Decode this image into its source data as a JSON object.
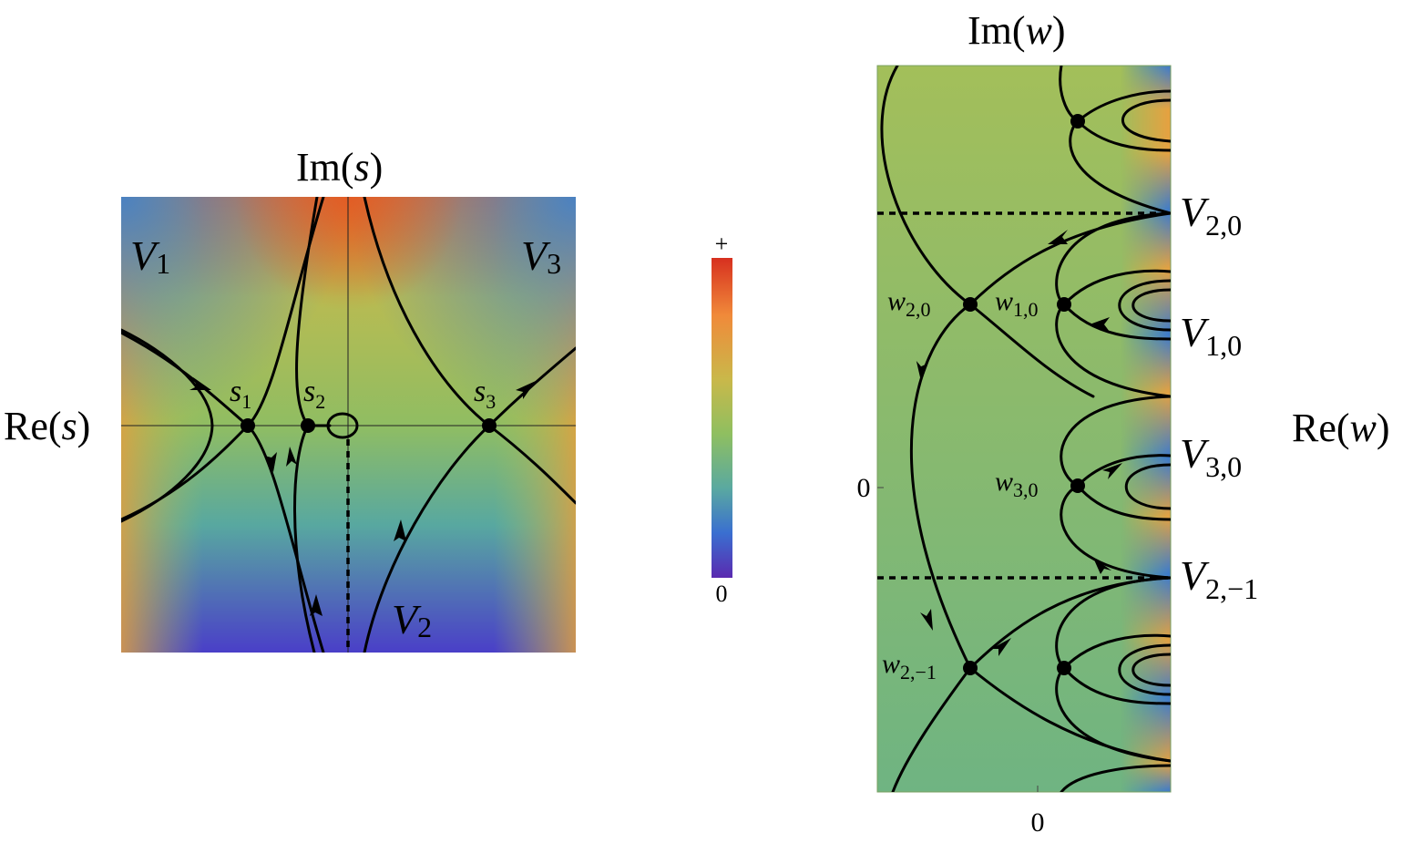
{
  "left_panel": {
    "x_axis_label_pre": "Re(",
    "x_axis_label_var": "s",
    "x_axis_label_post": ")",
    "y_axis_label_pre": "Im(",
    "y_axis_label_var": "s",
    "y_axis_label_post": ")",
    "valleys": [
      {
        "main": "V",
        "sub": "1"
      },
      {
        "main": "V",
        "sub": "2"
      },
      {
        "main": "V",
        "sub": "3"
      }
    ],
    "saddles": [
      {
        "main": "s",
        "sub": "1"
      },
      {
        "main": "s",
        "sub": "2"
      },
      {
        "main": "s",
        "sub": "3"
      }
    ]
  },
  "colorbar": {
    "top_label": "+",
    "bottom_label": "0",
    "colors": [
      "#d7301f",
      "#f08a3a",
      "#c9b84a",
      "#8fbf60",
      "#5aa9a0",
      "#3a6fd0",
      "#5a2ab0"
    ]
  },
  "right_panel": {
    "x_axis_label_pre": "Re(",
    "x_axis_label_var": "w",
    "x_axis_label_post": ")",
    "y_axis_label_pre": "Im(",
    "y_axis_label_var": "w",
    "y_axis_label_post": ")",
    "x_tick": "0",
    "y_tick": "0",
    "valleys": [
      {
        "main": "V",
        "sub": "2,0"
      },
      {
        "main": "V",
        "sub": "1,0"
      },
      {
        "main": "V",
        "sub": "3,0"
      },
      {
        "main": "V",
        "sub": "2,−1"
      }
    ],
    "saddles": [
      {
        "main": "w",
        "sub": "2,0"
      },
      {
        "main": "w",
        "sub": "1,0"
      },
      {
        "main": "w",
        "sub": "3,0"
      },
      {
        "main": "w",
        "sub": "2,−1"
      }
    ]
  }
}
